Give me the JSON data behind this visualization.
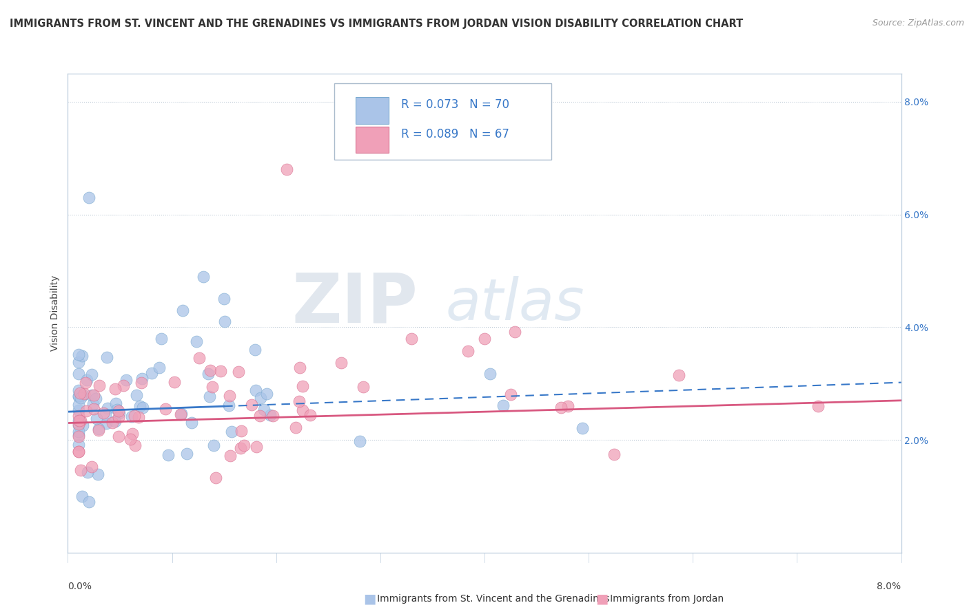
{
  "title": "IMMIGRANTS FROM ST. VINCENT AND THE GRENADINES VS IMMIGRANTS FROM JORDAN VISION DISABILITY CORRELATION CHART",
  "source": "Source: ZipAtlas.com",
  "ylabel": "Vision Disability",
  "xlim": [
    0.0,
    0.08
  ],
  "ylim": [
    0.0,
    0.085
  ],
  "series1_label": "Immigrants from St. Vincent and the Grenadines",
  "series2_label": "Immigrants from Jordan",
  "series1_color": "#aac4e8",
  "series2_color": "#f0a0b8",
  "series1_edge": "#7aaad0",
  "series2_edge": "#d87090",
  "line1_color": "#3878c8",
  "line2_color": "#d85880",
  "R1": 0.073,
  "N1": 70,
  "R2": 0.089,
  "N2": 67,
  "watermark_zip": "ZIP",
  "watermark_atlas": "atlas",
  "background_color": "#ffffff",
  "grid_color": "#c0ccd8",
  "legend_R_color": "#3878c8",
  "title_fontsize": 10.5,
  "source_fontsize": 9
}
